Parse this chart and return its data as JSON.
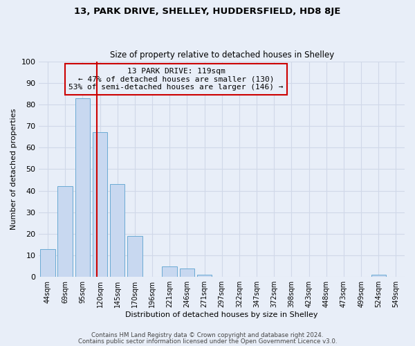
{
  "title1": "13, PARK DRIVE, SHELLEY, HUDDERSFIELD, HD8 8JE",
  "title2": "Size of property relative to detached houses in Shelley",
  "xlabel": "Distribution of detached houses by size in Shelley",
  "ylabel": "Number of detached properties",
  "bar_labels": [
    "44sqm",
    "69sqm",
    "95sqm",
    "120sqm",
    "145sqm",
    "170sqm",
    "196sqm",
    "221sqm",
    "246sqm",
    "271sqm",
    "297sqm",
    "322sqm",
    "347sqm",
    "372sqm",
    "398sqm",
    "423sqm",
    "448sqm",
    "473sqm",
    "499sqm",
    "524sqm",
    "549sqm"
  ],
  "bar_values": [
    13,
    42,
    83,
    67,
    43,
    19,
    0,
    5,
    4,
    1,
    0,
    0,
    0,
    0,
    0,
    0,
    0,
    0,
    0,
    1,
    0
  ],
  "bar_color": "#c8d8f0",
  "bar_edge_color": "#6aaad4",
  "background_color": "#e8eef8",
  "grid_color": "#d0d8e8",
  "ylim": [
    0,
    100
  ],
  "property_label": "13 PARK DRIVE: 119sqm",
  "annotation_line1": "← 47% of detached houses are smaller (130)",
  "annotation_line2": "53% of semi-detached houses are larger (146) →",
  "vline_position": 2.82,
  "vline_color": "#cc0000",
  "annotation_box_edge_color": "#cc0000",
  "footer1": "Contains HM Land Registry data © Crown copyright and database right 2024.",
  "footer2": "Contains public sector information licensed under the Open Government Licence v3.0."
}
